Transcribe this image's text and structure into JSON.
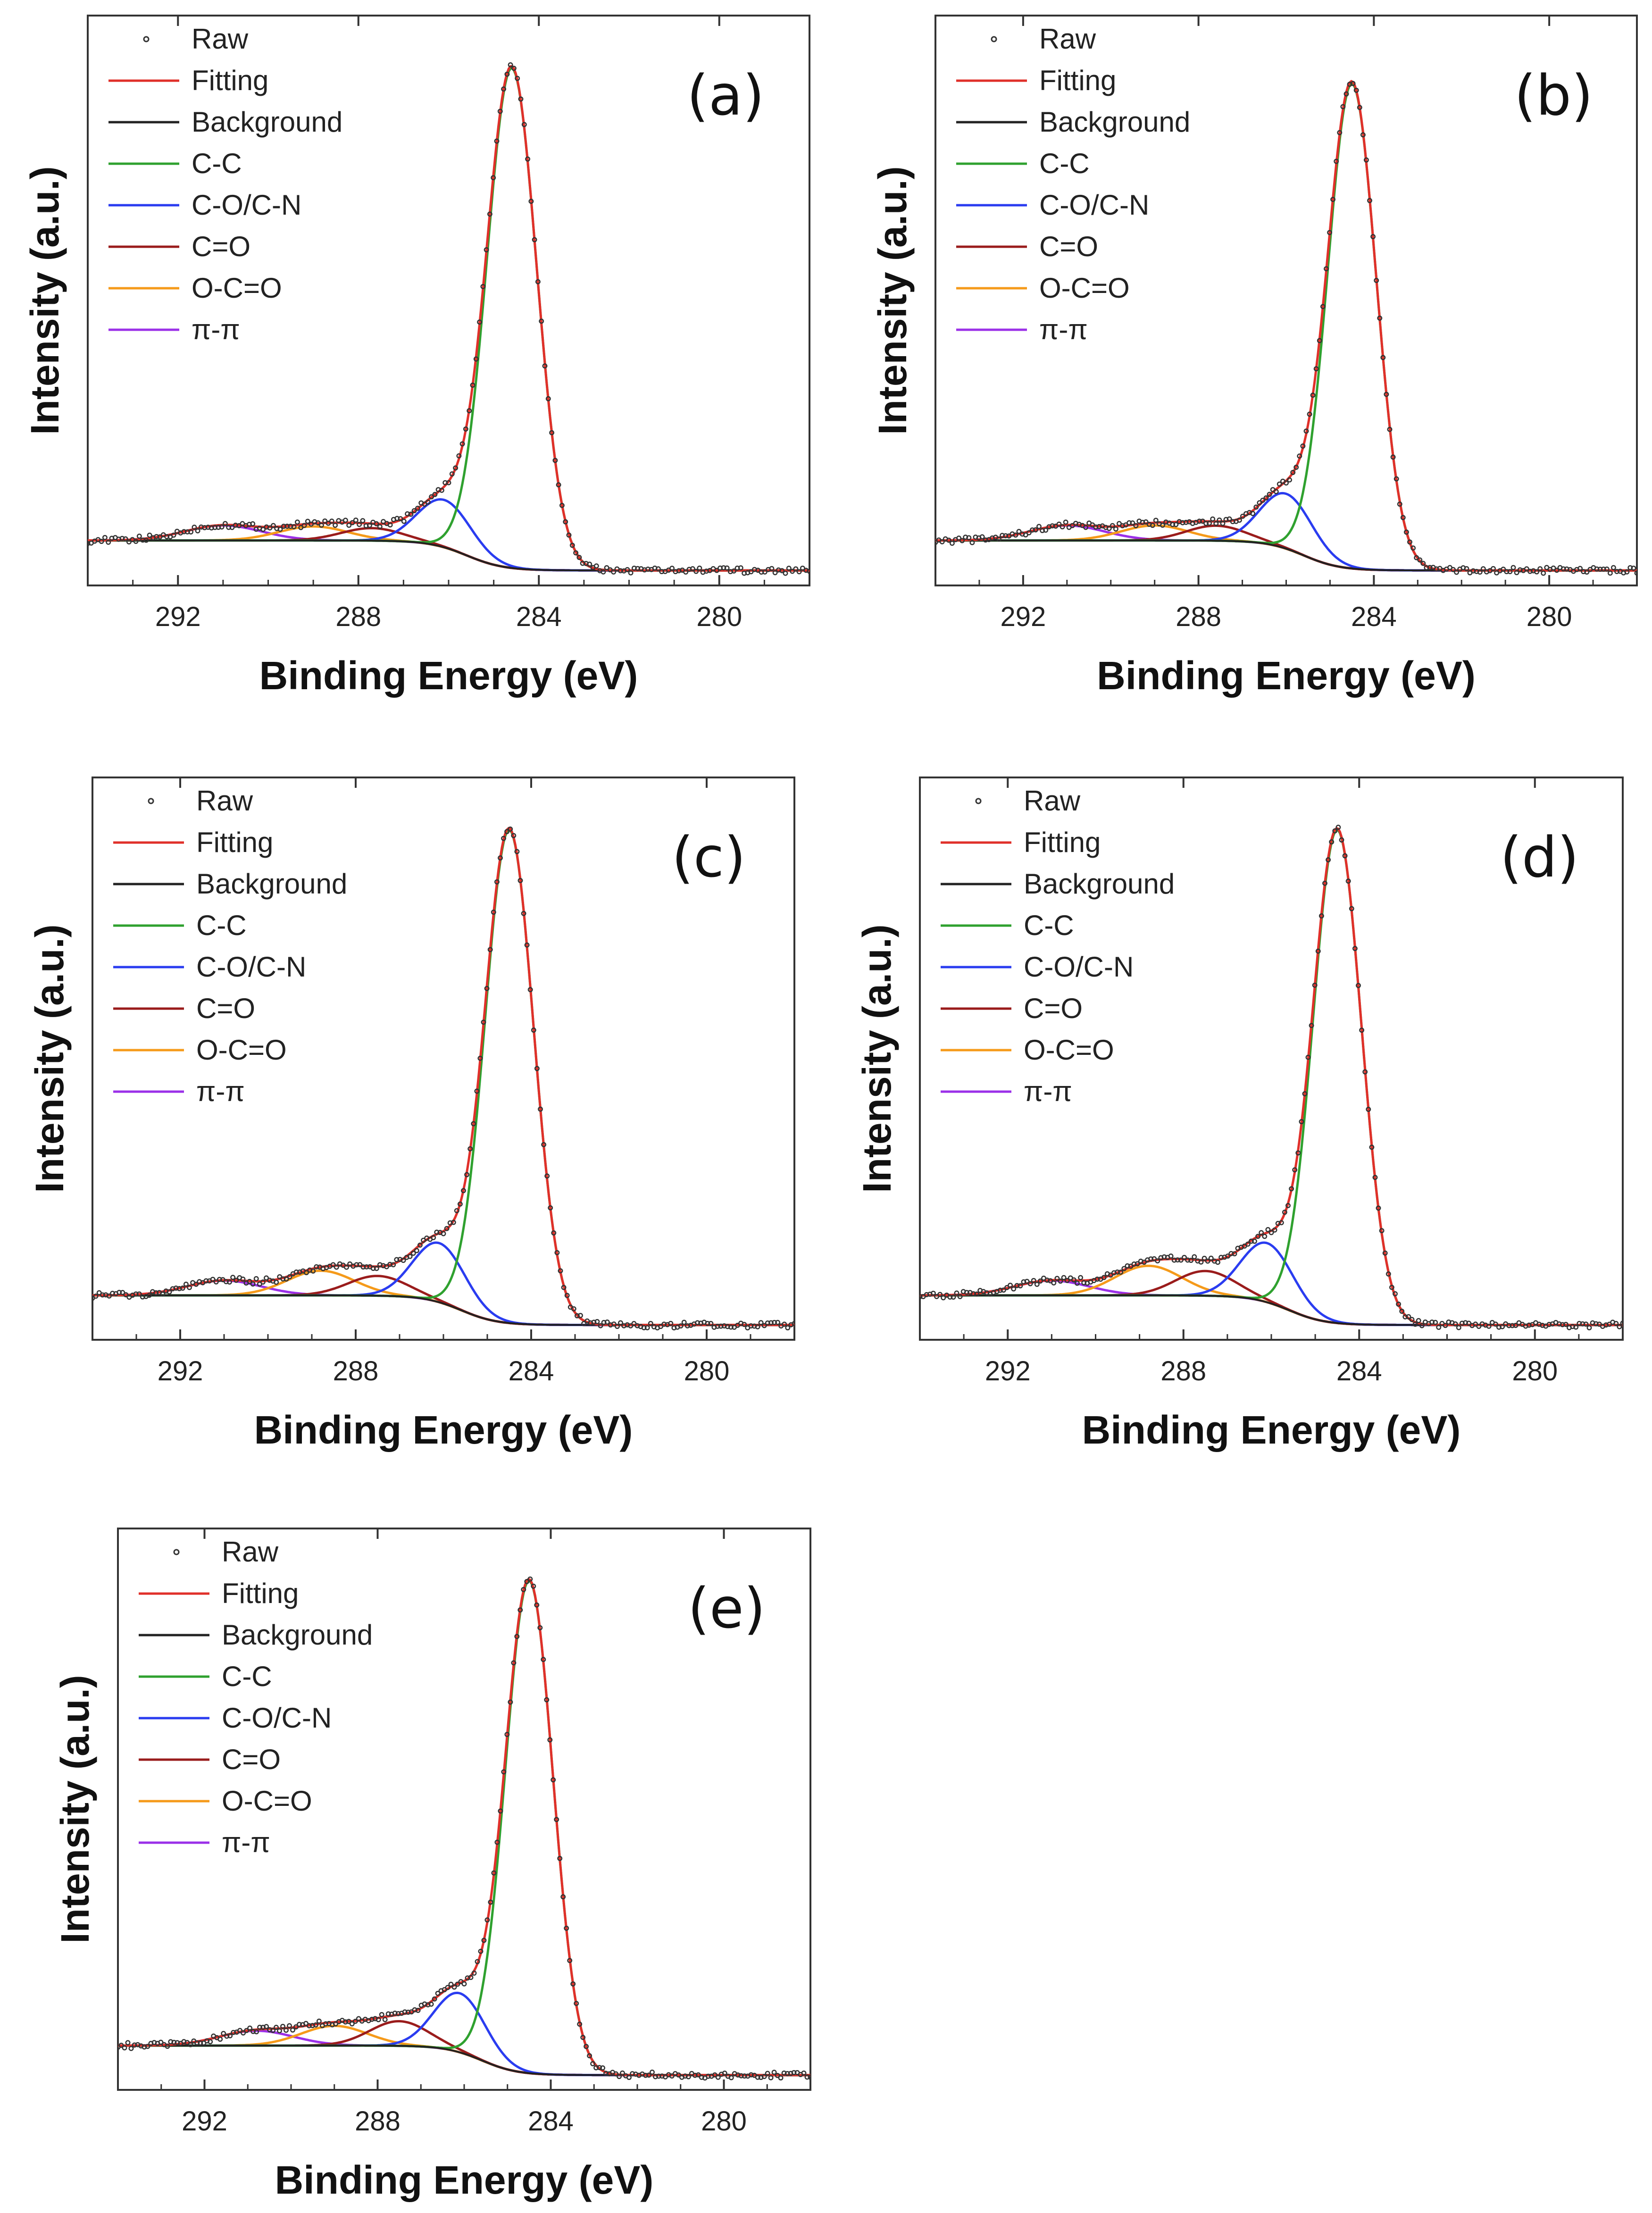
{
  "colors": {
    "raw": "#333333",
    "fitting": "#e0302a",
    "background": "#222222",
    "C-C": "#2fa12f",
    "C-O/C-N": "#2a3cf0",
    "C=O": "#9a1c1c",
    "O-C=O": "#f59a1a",
    "pi-pi": "#9b30e8"
  },
  "chart_data": [
    {
      "type": "line",
      "panel": "(a)",
      "xlabel": "Binding Energy (eV)",
      "ylabel": "Intensity (a.u.)",
      "xlim": [
        294,
        278
      ],
      "ylim": [
        -0.09,
        1.05
      ],
      "xticks": [
        292,
        288,
        284,
        280
      ],
      "legend": [
        "Raw",
        "Fitting",
        "Background",
        "C-C",
        "C-O/C-N",
        "C=O",
        "O-C=O",
        "π-π"
      ],
      "legend_position": "top-left",
      "baseline_left": 0.0,
      "baseline_right": -0.06,
      "peaks": [
        {
          "name": "C-C",
          "center": 284.6,
          "height": 1.0,
          "fwhm": 1.3
        },
        {
          "name": "C-O/C-N",
          "center": 286.1,
          "height": 0.095,
          "fwhm": 1.4
        },
        {
          "name": "C=O",
          "center": 287.7,
          "height": 0.025,
          "fwhm": 1.6
        },
        {
          "name": "O-C=O",
          "center": 289.0,
          "height": 0.028,
          "fwhm": 1.8
        },
        {
          "name": "π-π",
          "center": 291.0,
          "height": 0.03,
          "fwhm": 2.0
        }
      ]
    },
    {
      "type": "line",
      "panel": "(b)",
      "xlabel": "Binding Energy (eV)",
      "ylabel": "Intensity (a.u.)",
      "xlim": [
        294,
        278
      ],
      "ylim": [
        -0.09,
        1.05
      ],
      "xticks": [
        292,
        288,
        284,
        280
      ],
      "legend": [
        "Raw",
        "Fitting",
        "Background",
        "C-C",
        "C-O/C-N",
        "C=O",
        "O-C=O",
        "π-π"
      ],
      "legend_position": "top-left",
      "baseline_left": 0.0,
      "baseline_right": -0.06,
      "peaks": [
        {
          "name": "C-C",
          "center": 284.5,
          "height": 0.97,
          "fwhm": 1.3
        },
        {
          "name": "C-O/C-N",
          "center": 286.0,
          "height": 0.11,
          "fwhm": 1.4
        },
        {
          "name": "C=O",
          "center": 287.6,
          "height": 0.03,
          "fwhm": 1.6
        },
        {
          "name": "O-C=O",
          "center": 289.0,
          "height": 0.03,
          "fwhm": 1.8
        },
        {
          "name": "π-π",
          "center": 291.0,
          "height": 0.03,
          "fwhm": 2.0
        }
      ]
    },
    {
      "type": "line",
      "panel": "(c)",
      "xlabel": "Binding Energy (eV)",
      "ylabel": "Intensity (a.u.)",
      "xlim": [
        294,
        278
      ],
      "ylim": [
        -0.09,
        1.05
      ],
      "xticks": [
        292,
        288,
        284,
        280
      ],
      "legend": [
        "Raw",
        "Fitting",
        "Background",
        "C-C",
        "C-O/C-N",
        "C=O",
        "O-C=O",
        "π-π"
      ],
      "legend_position": "top-left",
      "baseline_left": 0.0,
      "baseline_right": -0.06,
      "peaks": [
        {
          "name": "C-C",
          "center": 284.5,
          "height": 1.0,
          "fwhm": 1.3
        },
        {
          "name": "C-O/C-N",
          "center": 286.1,
          "height": 0.12,
          "fwhm": 1.4
        },
        {
          "name": "C=O",
          "center": 287.5,
          "height": 0.04,
          "fwhm": 1.6
        },
        {
          "name": "O-C=O",
          "center": 288.8,
          "height": 0.05,
          "fwhm": 1.8
        },
        {
          "name": "π-π",
          "center": 291.0,
          "height": 0.03,
          "fwhm": 2.0
        }
      ]
    },
    {
      "type": "line",
      "panel": "(d)",
      "xlabel": "Binding Energy (eV)",
      "ylabel": "Intensity (a.u.)",
      "xlim": [
        294,
        278
      ],
      "ylim": [
        -0.09,
        1.05
      ],
      "xticks": [
        292,
        288,
        284,
        280
      ],
      "legend": [
        "Raw",
        "Fitting",
        "Background",
        "C-C",
        "C-O/C-N",
        "C=O",
        "O-C=O",
        "π-π"
      ],
      "legend_position": "top-left",
      "baseline_left": 0.0,
      "baseline_right": -0.06,
      "peaks": [
        {
          "name": "C-C",
          "center": 284.5,
          "height": 1.0,
          "fwhm": 1.3
        },
        {
          "name": "C-O/C-N",
          "center": 286.1,
          "height": 0.12,
          "fwhm": 1.4
        },
        {
          "name": "C=O",
          "center": 287.5,
          "height": 0.05,
          "fwhm": 1.6
        },
        {
          "name": "O-C=O",
          "center": 288.8,
          "height": 0.06,
          "fwhm": 1.8
        },
        {
          "name": "π-π",
          "center": 291.0,
          "height": 0.03,
          "fwhm": 2.0
        }
      ]
    },
    {
      "type": "line",
      "panel": "(e)",
      "xlabel": "Binding Energy (eV)",
      "ylabel": "Intensity (a.u.)",
      "xlim": [
        294,
        278
      ],
      "ylim": [
        -0.09,
        1.05
      ],
      "xticks": [
        292,
        288,
        284,
        280
      ],
      "legend": [
        "Raw",
        "Fitting",
        "Background",
        "C-C",
        "C-O/C-N",
        "C=O",
        "O-C=O",
        "π-π"
      ],
      "legend_position": "top-left",
      "baseline_left": 0.0,
      "baseline_right": -0.06,
      "peaks": [
        {
          "name": "C-C",
          "center": 284.5,
          "height": 1.0,
          "fwhm": 1.3
        },
        {
          "name": "C-O/C-N",
          "center": 286.1,
          "height": 0.12,
          "fwhm": 1.4
        },
        {
          "name": "C=O",
          "center": 287.5,
          "height": 0.05,
          "fwhm": 1.6
        },
        {
          "name": "O-C=O",
          "center": 289.0,
          "height": 0.04,
          "fwhm": 1.8
        },
        {
          "name": "π-π",
          "center": 290.8,
          "height": 0.03,
          "fwhm": 2.0
        }
      ]
    }
  ]
}
